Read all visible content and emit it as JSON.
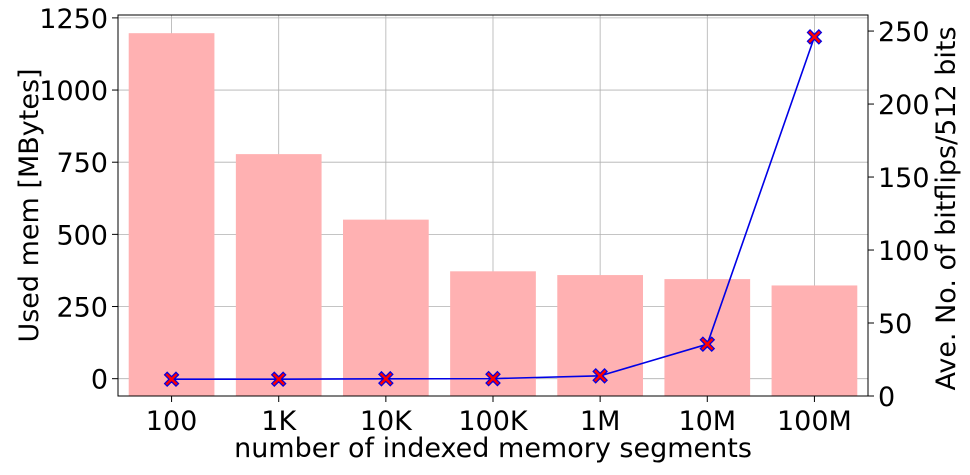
{
  "chart_data": {
    "type": "bar+line",
    "categories": [
      "100",
      "1K",
      "10K",
      "100K",
      "1M",
      "10M",
      "100M"
    ],
    "xlabel": "number of indexed memory segments",
    "ylabel_left": "Used mem [MBytes]",
    "ylabel_right": "Ave. No. of bitflips/512 bits",
    "ylim_left": [
      -60,
      1260
    ],
    "ylim_right": [
      0,
      261
    ],
    "yticks_left": [
      0,
      250,
      500,
      750,
      1000,
      1250
    ],
    "yticks_right": [
      0,
      50,
      100,
      150,
      200,
      250
    ],
    "grid": true,
    "series": [
      {
        "kind": "bar",
        "axis": "left",
        "values": [
          1197,
          778,
          551,
          372,
          359,
          345,
          323
        ]
      },
      {
        "kind": "line",
        "axis": "right",
        "marker": "X",
        "values": [
          11.5,
          11.5,
          11.8,
          11.9,
          13.8,
          35.5,
          246
        ]
      }
    ],
    "colors": {
      "bar": "#ffb1b2",
      "line": "#0000e6",
      "marker_fill": "#ff0000",
      "marker_edge": "#0000e6",
      "grid": "#b0b0b0"
    }
  }
}
